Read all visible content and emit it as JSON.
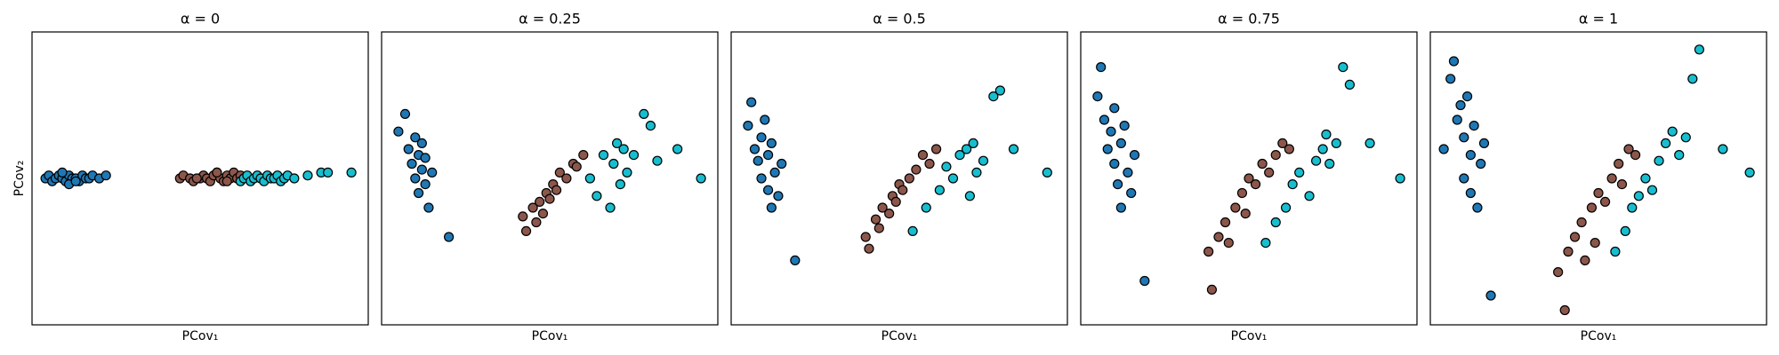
{
  "chart_data": [
    {
      "type": "scatter",
      "title": "α = 0",
      "x_label": "PCov₁",
      "y_label": "PCov₂",
      "xlim": [
        0,
        100
      ],
      "ylim": [
        0,
        100
      ],
      "series": [
        {
          "color": "#1f77b4",
          "x": [
            4,
            5,
            6,
            7,
            8,
            9,
            10,
            11,
            12,
            13,
            14,
            15,
            16,
            17,
            18,
            20,
            22,
            9,
            11,
            13
          ],
          "y": [
            50,
            51,
            49,
            50,
            51,
            50,
            49,
            51,
            50,
            50,
            49,
            51,
            50,
            50,
            51,
            50,
            51,
            52,
            48,
            49
          ]
        },
        {
          "color": "#8c564b",
          "x": [
            44,
            45,
            47,
            48,
            50,
            51,
            52,
            53,
            54,
            55,
            56,
            57,
            58,
            59,
            60,
            61,
            62,
            49,
            55,
            58
          ],
          "y": [
            50,
            51,
            50,
            49,
            50,
            51,
            50,
            49,
            51,
            52,
            50,
            49,
            51,
            50,
            52,
            50,
            51,
            50,
            52,
            49
          ]
        },
        {
          "color": "#17becf",
          "x": [
            62,
            63,
            64,
            65,
            66,
            67,
            68,
            69,
            70,
            71,
            72,
            73,
            74,
            75,
            76,
            78,
            82,
            86,
            88,
            95
          ],
          "y": [
            49,
            50,
            51,
            49,
            50,
            51,
            50,
            49,
            51,
            50,
            50,
            51,
            49,
            50,
            51,
            50,
            51,
            52,
            52,
            52
          ]
        }
      ]
    },
    {
      "type": "scatter",
      "title": "α = 0.25",
      "x_label": "PCov₁",
      "xlim": [
        0,
        100
      ],
      "ylim": [
        0,
        100
      ],
      "series": [
        {
          "color": "#1f77b4",
          "x": [
            5,
            7,
            8,
            9,
            10,
            10,
            11,
            11,
            12,
            12,
            13,
            13,
            14,
            15,
            20
          ],
          "y": [
            66,
            72,
            60,
            55,
            64,
            50,
            58,
            45,
            62,
            53,
            48,
            57,
            40,
            52,
            30
          ]
        },
        {
          "color": "#8c564b",
          "x": [
            42,
            43,
            45,
            46,
            47,
            48,
            49,
            50,
            51,
            52,
            53,
            55,
            57,
            58,
            60
          ],
          "y": [
            37,
            32,
            40,
            35,
            42,
            38,
            45,
            43,
            48,
            46,
            52,
            50,
            55,
            54,
            58
          ]
        },
        {
          "color": "#17becf",
          "x": [
            62,
            64,
            66,
            68,
            69,
            70,
            71,
            72,
            73,
            75,
            78,
            80,
            82,
            88,
            95
          ],
          "y": [
            50,
            44,
            58,
            40,
            55,
            62,
            48,
            60,
            52,
            58,
            72,
            68,
            56,
            60,
            50
          ]
        }
      ]
    },
    {
      "type": "scatter",
      "title": "α = 0.5",
      "x_label": "PCov₁",
      "xlim": [
        0,
        100
      ],
      "ylim": [
        0,
        100
      ],
      "series": [
        {
          "color": "#1f77b4",
          "x": [
            5,
            6,
            7,
            8,
            9,
            9,
            10,
            11,
            11,
            12,
            12,
            13,
            14,
            15,
            19
          ],
          "y": [
            68,
            76,
            60,
            56,
            64,
            50,
            70,
            46,
            58,
            62,
            40,
            52,
            44,
            55,
            22
          ]
        },
        {
          "color": "#8c564b",
          "x": [
            40,
            41,
            43,
            44,
            45,
            47,
            48,
            49,
            50,
            51,
            53,
            55,
            57,
            59,
            61
          ],
          "y": [
            30,
            26,
            36,
            33,
            40,
            38,
            44,
            42,
            48,
            46,
            50,
            53,
            58,
            55,
            60
          ]
        },
        {
          "color": "#17becf",
          "x": [
            54,
            58,
            62,
            64,
            66,
            68,
            70,
            71,
            72,
            73,
            75,
            78,
            80,
            84,
            94
          ],
          "y": [
            32,
            40,
            46,
            54,
            50,
            58,
            60,
            44,
            62,
            52,
            56,
            78,
            80,
            60,
            52
          ]
        }
      ]
    },
    {
      "type": "scatter",
      "title": "α = 0.75",
      "x_label": "PCov₁",
      "xlim": [
        0,
        100
      ],
      "ylim": [
        0,
        100
      ],
      "series": [
        {
          "color": "#1f77b4",
          "x": [
            5,
            6,
            7,
            8,
            9,
            10,
            10,
            11,
            12,
            12,
            13,
            14,
            15,
            16,
            19
          ],
          "y": [
            78,
            88,
            70,
            60,
            66,
            55,
            74,
            48,
            62,
            40,
            68,
            52,
            45,
            58,
            15
          ]
        },
        {
          "color": "#8c564b",
          "x": [
            38,
            39,
            41,
            43,
            44,
            46,
            48,
            49,
            50,
            52,
            54,
            56,
            58,
            60,
            62
          ],
          "y": [
            25,
            12,
            30,
            35,
            28,
            40,
            45,
            38,
            50,
            48,
            55,
            52,
            58,
            62,
            60
          ]
        },
        {
          "color": "#17becf",
          "x": [
            55,
            58,
            61,
            63,
            65,
            68,
            70,
            72,
            73,
            74,
            76,
            78,
            80,
            86,
            95
          ],
          "y": [
            28,
            35,
            40,
            48,
            52,
            44,
            56,
            60,
            65,
            55,
            62,
            88,
            82,
            62,
            50
          ]
        }
      ]
    },
    {
      "type": "scatter",
      "title": "α = 1",
      "x_label": "PCov₁",
      "xlim": [
        0,
        100
      ],
      "ylim": [
        0,
        100
      ],
      "series": [
        {
          "color": "#1f77b4",
          "x": [
            4,
            6,
            7,
            8,
            9,
            10,
            10,
            11,
            12,
            12,
            13,
            14,
            15,
            16,
            18
          ],
          "y": [
            60,
            84,
            90,
            70,
            75,
            64,
            50,
            78,
            58,
            45,
            68,
            40,
            55,
            62,
            10
          ]
        },
        {
          "color": "#8c564b",
          "x": [
            38,
            40,
            41,
            43,
            45,
            46,
            48,
            49,
            50,
            52,
            54,
            56,
            57,
            59,
            61
          ],
          "y": [
            18,
            5,
            25,
            30,
            35,
            22,
            40,
            28,
            45,
            42,
            50,
            55,
            48,
            60,
            58
          ]
        },
        {
          "color": "#17becf",
          "x": [
            55,
            58,
            60,
            62,
            64,
            66,
            68,
            70,
            72,
            74,
            76,
            78,
            80,
            87,
            95
          ],
          "y": [
            25,
            32,
            40,
            44,
            50,
            46,
            56,
            62,
            66,
            58,
            64,
            84,
            94,
            60,
            52
          ]
        }
      ]
    }
  ]
}
